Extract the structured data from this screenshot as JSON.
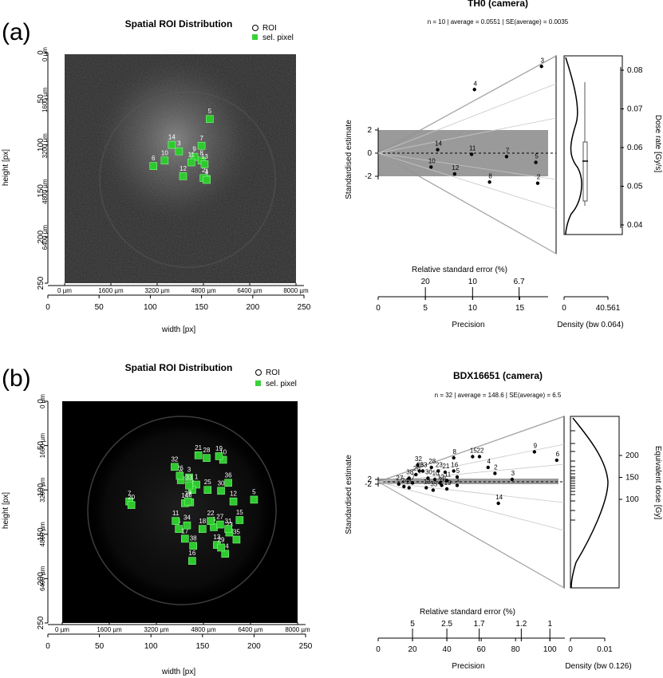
{
  "panels": [
    {
      "tag": "(a)",
      "roi": {
        "title": "Spatial ROI Distribution",
        "legend": [
          "ROI",
          "sel. pixel"
        ],
        "xlabel": "width [px]",
        "ylabel": "height [px]",
        "xticks": [
          "0",
          "50",
          "100",
          "150",
          "200",
          "250"
        ],
        "yticks": [
          "0",
          "50",
          "100",
          "150",
          "200",
          "250"
        ],
        "um_x": [
          "0 µm",
          "1600 µm",
          "3200 µm",
          "4800 µm",
          "6400 µm",
          "8000 µm"
        ],
        "um_y": [
          "0 µm",
          "1600 µm",
          "3200 µm",
          "4800 µm",
          "6400 µm"
        ]
      },
      "radial": {
        "title": "TH0 (camera)",
        "subtitle": "n = 10 | average = 0.0551 | SE(average) = 0.0035",
        "ylabel": "Standardised estimate",
        "rse_label": "Relative standard error (%)",
        "rse_ticks": [
          "20",
          "10",
          "6.7"
        ],
        "precision_label": "Precision",
        "precision_ticks": [
          "0",
          "5",
          "10",
          "15"
        ],
        "density_label": "Density (bw 0.064)",
        "density_ticks": [
          "0",
          "40.561"
        ],
        "z_ticks": [
          "2",
          "0",
          "-2"
        ],
        "right_label": "Dose rate [Gy/s]",
        "right_ticks": [
          "0.08",
          "0.07",
          "0.06",
          "0.05",
          "0.04"
        ]
      }
    },
    {
      "tag": "(b)",
      "roi": {
        "title": "Spatial ROI Distribution",
        "legend": [
          "ROI",
          "sel. pixel"
        ],
        "xlabel": "width [px]",
        "ylabel": "height [px]",
        "xticks": [
          "0",
          "50",
          "100",
          "150",
          "200",
          "250"
        ],
        "yticks": [
          "0",
          "50",
          "100",
          "150",
          "200",
          "250"
        ],
        "um_x": [
          "0 µm",
          "1600 µm",
          "3200 µm",
          "4800 µm",
          "6400 µm",
          "8000 µm"
        ],
        "um_y": [
          "0 µm",
          "1600 µm",
          "3200 µm",
          "4800 µm",
          "6400 µm"
        ]
      },
      "radial": {
        "title": "BDX16651 (camera)",
        "subtitle": "n = 32 | average = 148.6 | SE(average) = 6.5",
        "ylabel": "Standardised estimate",
        "rse_label": "Relative standard error (%)",
        "rse_ticks": [
          "5",
          "2.5",
          "1.7",
          "1.2",
          "1"
        ],
        "precision_label": "Precision",
        "precision_ticks": [
          "0",
          "20",
          "40",
          "60",
          "80",
          "100"
        ],
        "density_label": "Density (bw 0.126)",
        "density_ticks": [
          "0",
          "0.01"
        ],
        "z_ticks": [
          "2",
          "-2"
        ],
        "right_label": "Equivalent dose [Gy]",
        "right_ticks": [
          "200",
          "150",
          "100"
        ]
      }
    }
  ],
  "chart_data": [
    {
      "type": "scatter",
      "title": "Spatial ROI Distribution",
      "xlabel": "width [px]",
      "ylabel": "height [px]",
      "xlim": [
        0,
        250
      ],
      "ylim": [
        250,
        0
      ],
      "points": [
        {
          "id": "1",
          "x": 155,
          "y": 137
        },
        {
          "id": "2",
          "x": 152,
          "y": 136
        },
        {
          "id": "3",
          "x": 128,
          "y": 107
        },
        {
          "id": "4",
          "x": 155,
          "y": 138
        },
        {
          "id": "5",
          "x": 158,
          "y": 72
        },
        {
          "id": "6",
          "x": 103,
          "y": 123
        },
        {
          "id": "7",
          "x": 150,
          "y": 101
        },
        {
          "id": "8",
          "x": 150,
          "y": 117
        },
        {
          "id": "9",
          "x": 143,
          "y": 113
        },
        {
          "id": "10",
          "x": 114,
          "y": 117
        },
        {
          "id": "11",
          "x": 140,
          "y": 119
        },
        {
          "id": "12",
          "x": 132,
          "y": 134
        },
        {
          "id": "13",
          "x": 153,
          "y": 121
        },
        {
          "id": "14",
          "x": 121,
          "y": 100
        }
      ]
    },
    {
      "type": "scatter",
      "title": "TH0 (camera)",
      "xlabel": "Precision",
      "ylabel": "Standardised estimate",
      "xlim": [
        0,
        18
      ],
      "zlim": [
        -2,
        2
      ],
      "central_value": 0.0551,
      "right_axis_range": [
        0.04,
        0.08
      ],
      "points": [
        {
          "id": "3",
          "x": 17.3,
          "z": 7.5
        },
        {
          "id": "4",
          "x": 10.2,
          "z": 5.5
        },
        {
          "id": "14",
          "x": 6.3,
          "z": 0.3
        },
        {
          "id": "11",
          "x": 9.9,
          "z": -0.1
        },
        {
          "id": "7",
          "x": 13.6,
          "z": -0.3
        },
        {
          "id": "5",
          "x": 16.7,
          "z": -0.8
        },
        {
          "id": "10",
          "x": 5.6,
          "z": -1.2
        },
        {
          "id": "12",
          "x": 8.1,
          "z": -1.8
        },
        {
          "id": "8",
          "x": 11.8,
          "z": -2.5
        },
        {
          "id": "2",
          "x": 16.9,
          "z": -2.6
        }
      ]
    },
    {
      "type": "scatter",
      "title": "Spatial ROI Distribution",
      "xlabel": "width [px]",
      "ylabel": "height [px]",
      "xlim": [
        0,
        250
      ],
      "ylim": [
        250,
        0
      ],
      "points": [
        {
          "id": "1",
          "x": 144,
          "y": 94
        },
        {
          "id": "2",
          "x": 140,
          "y": 100
        },
        {
          "id": "3",
          "x": 137,
          "y": 86
        },
        {
          "id": "4",
          "x": 127,
          "y": 144
        },
        {
          "id": "5",
          "x": 200,
          "y": 111
        },
        {
          "id": "6",
          "x": 161,
          "y": 142
        },
        {
          "id": "7",
          "x": 79,
          "y": 113
        },
        {
          "id": "8",
          "x": 138,
          "y": 114
        },
        {
          "id": "9",
          "x": 129,
          "y": 89
        },
        {
          "id": "10",
          "x": 170,
          "y": 66
        },
        {
          "id": "11",
          "x": 124,
          "y": 135
        },
        {
          "id": "12",
          "x": 180,
          "y": 113
        },
        {
          "id": "13",
          "x": 164,
          "y": 162
        },
        {
          "id": "14",
          "x": 133,
          "y": 115
        },
        {
          "id": "15",
          "x": 186,
          "y": 134
        },
        {
          "id": "16",
          "x": 140,
          "y": 180
        },
        {
          "id": "17",
          "x": 133,
          "y": 155
        },
        {
          "id": "18",
          "x": 150,
          "y": 144
        },
        {
          "id": "19",
          "x": 166,
          "y": 62
        },
        {
          "id": "20",
          "x": 81,
          "y": 117
        },
        {
          "id": "21",
          "x": 146,
          "y": 61
        },
        {
          "id": "22",
          "x": 158,
          "y": 135
        },
        {
          "id": "23",
          "x": 176,
          "y": 148
        },
        {
          "id": "24",
          "x": 172,
          "y": 172
        },
        {
          "id": "25",
          "x": 155,
          "y": 100
        },
        {
          "id": "26",
          "x": 128,
          "y": 84
        },
        {
          "id": "27",
          "x": 167,
          "y": 139
        },
        {
          "id": "28",
          "x": 154,
          "y": 64
        },
        {
          "id": "29",
          "x": 168,
          "y": 165
        },
        {
          "id": "30",
          "x": 168,
          "y": 101
        },
        {
          "id": "31",
          "x": 175,
          "y": 144
        },
        {
          "id": "32",
          "x": 123,
          "y": 74
        },
        {
          "id": "33",
          "x": 137,
          "y": 95
        },
        {
          "id": "34",
          "x": 135,
          "y": 140
        },
        {
          "id": "35",
          "x": 183,
          "y": 156
        },
        {
          "id": "36",
          "x": 175,
          "y": 92
        },
        {
          "id": "37",
          "x": 136,
          "y": 113
        },
        {
          "id": "38",
          "x": 141,
          "y": 163
        }
      ]
    },
    {
      "type": "scatter",
      "title": "BDX16651 (camera)",
      "xlabel": "Precision",
      "ylabel": "Standardised estimate",
      "xlim": [
        0,
        105
      ],
      "zlim": [
        -2,
        2
      ],
      "central_value": 148.6,
      "right_axis_range": [
        80,
        220
      ],
      "points": [
        {
          "id": "9",
          "x": 91,
          "z": 25
        },
        {
          "id": "6",
          "x": 104,
          "z": 18
        },
        {
          "id": "22",
          "x": 59,
          "z": 21
        },
        {
          "id": "15",
          "x": 55,
          "z": 21
        },
        {
          "id": "8",
          "x": 44,
          "z": 20
        },
        {
          "id": "4",
          "x": 64,
          "z": 12
        },
        {
          "id": "2",
          "x": 68,
          "z": 7
        },
        {
          "id": "3",
          "x": 78,
          "z": 2
        },
        {
          "id": "14",
          "x": 70,
          "z": -18
        },
        {
          "id": "32",
          "x": 23,
          "z": 14
        },
        {
          "id": "28",
          "x": 31,
          "z": 12
        },
        {
          "id": "16",
          "x": 44,
          "z": 9
        },
        {
          "id": "26",
          "x": 24,
          "z": 9
        },
        {
          "id": "33",
          "x": 26,
          "z": 9
        },
        {
          "id": "23",
          "x": 35,
          "z": 9
        },
        {
          "id": "21",
          "x": 39,
          "z": 8
        },
        {
          "id": "20",
          "x": 22,
          "z": 6
        },
        {
          "id": "5",
          "x": 46,
          "z": 4
        },
        {
          "id": "38",
          "x": 18,
          "z": 3
        },
        {
          "id": "30",
          "x": 29,
          "z": 3
        },
        {
          "id": "10",
          "x": 33,
          "z": 2
        },
        {
          "id": "11",
          "x": 40,
          "z": 1
        },
        {
          "id": "12",
          "x": 36,
          "z": -1
        },
        {
          "id": "7",
          "x": 20,
          "z": -1
        },
        {
          "id": "18",
          "x": 37,
          "z": -3
        },
        {
          "id": "1",
          "x": 46,
          "z": -3
        },
        {
          "id": "24",
          "x": 15,
          "z": -4
        },
        {
          "id": "25",
          "x": 18,
          "z": -5
        },
        {
          "id": "35",
          "x": 32,
          "z": -7
        },
        {
          "id": "13",
          "x": 28,
          "z": -5
        },
        {
          "id": "19",
          "x": 40,
          "z": -6
        },
        {
          "id": "27",
          "x": 12,
          "z": -2
        }
      ]
    }
  ]
}
